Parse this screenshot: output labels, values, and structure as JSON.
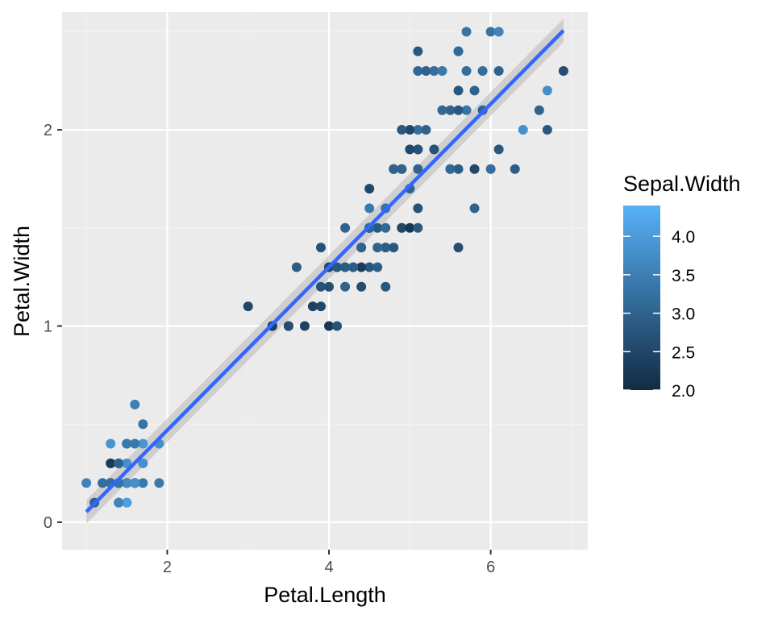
{
  "chart_data": {
    "type": "scatter",
    "xlabel": "Petal.Length",
    "ylabel": "Petal.Width",
    "xlim": [
      0.7,
      7.2
    ],
    "ylim": [
      -0.14,
      2.6
    ],
    "x_ticks": [
      2,
      4,
      6
    ],
    "x_tick_labels": [
      "2",
      "4",
      "6"
    ],
    "y_ticks": [
      0,
      1,
      2
    ],
    "y_tick_labels": [
      "0",
      "1",
      "2"
    ],
    "grid": true,
    "legend": {
      "title": "Sepal.Width",
      "placement": "right",
      "min": 2.0,
      "max": 4.4,
      "breaks": [
        2.0,
        2.5,
        3.0,
        3.5,
        4.0
      ],
      "break_labels": [
        "2.0",
        "2.5",
        "3.0",
        "3.5",
        "4.0"
      ]
    },
    "colors": {
      "panel_bg": "#ebebeb",
      "grid_major": "#ffffff",
      "grid_minor": "#f4f4f4",
      "low": "#132B43",
      "high": "#56B1F7",
      "fit_line": "#3366FF",
      "confidence_band": "#bdbdbd"
    },
    "fit": {
      "method": "lm",
      "intercept": -0.363,
      "slope": 0.4158,
      "x_range": [
        1.0,
        6.9
      ],
      "se_band": 0.06
    },
    "points": [
      {
        "x": 1.4,
        "y": 0.2,
        "c": 3.5
      },
      {
        "x": 1.4,
        "y": 0.2,
        "c": 3.0
      },
      {
        "x": 1.3,
        "y": 0.2,
        "c": 3.2
      },
      {
        "x": 1.5,
        "y": 0.2,
        "c": 3.1
      },
      {
        "x": 1.4,
        "y": 0.2,
        "c": 3.6
      },
      {
        "x": 1.7,
        "y": 0.4,
        "c": 3.9
      },
      {
        "x": 1.4,
        "y": 0.3,
        "c": 3.4
      },
      {
        "x": 1.5,
        "y": 0.2,
        "c": 3.4
      },
      {
        "x": 1.4,
        "y": 0.2,
        "c": 2.9
      },
      {
        "x": 1.5,
        "y": 0.1,
        "c": 3.1
      },
      {
        "x": 1.5,
        "y": 0.2,
        "c": 3.7
      },
      {
        "x": 1.6,
        "y": 0.2,
        "c": 3.4
      },
      {
        "x": 1.4,
        "y": 0.1,
        "c": 3.0
      },
      {
        "x": 1.1,
        "y": 0.1,
        "c": 3.0
      },
      {
        "x": 1.2,
        "y": 0.2,
        "c": 4.0
      },
      {
        "x": 1.5,
        "y": 0.4,
        "c": 4.4
      },
      {
        "x": 1.3,
        "y": 0.4,
        "c": 3.9
      },
      {
        "x": 1.4,
        "y": 0.3,
        "c": 3.5
      },
      {
        "x": 1.7,
        "y": 0.3,
        "c": 3.8
      },
      {
        "x": 1.5,
        "y": 0.3,
        "c": 3.8
      },
      {
        "x": 1.7,
        "y": 0.2,
        "c": 3.4
      },
      {
        "x": 1.5,
        "y": 0.4,
        "c": 3.7
      },
      {
        "x": 1.0,
        "y": 0.2,
        "c": 3.6
      },
      {
        "x": 1.7,
        "y": 0.5,
        "c": 3.3
      },
      {
        "x": 1.9,
        "y": 0.2,
        "c": 3.4
      },
      {
        "x": 1.6,
        "y": 0.2,
        "c": 3.0
      },
      {
        "x": 1.6,
        "y": 0.4,
        "c": 3.4
      },
      {
        "x": 1.5,
        "y": 0.2,
        "c": 3.5
      },
      {
        "x": 1.4,
        "y": 0.2,
        "c": 3.4
      },
      {
        "x": 1.6,
        "y": 0.2,
        "c": 3.2
      },
      {
        "x": 1.6,
        "y": 0.2,
        "c": 3.1
      },
      {
        "x": 1.5,
        "y": 0.4,
        "c": 3.4
      },
      {
        "x": 1.5,
        "y": 0.1,
        "c": 4.1
      },
      {
        "x": 1.4,
        "y": 0.2,
        "c": 4.2
      },
      {
        "x": 1.5,
        "y": 0.2,
        "c": 3.1
      },
      {
        "x": 1.2,
        "y": 0.2,
        "c": 3.2
      },
      {
        "x": 1.3,
        "y": 0.2,
        "c": 3.5
      },
      {
        "x": 1.4,
        "y": 0.1,
        "c": 3.6
      },
      {
        "x": 1.3,
        "y": 0.2,
        "c": 3.0
      },
      {
        "x": 1.5,
        "y": 0.2,
        "c": 3.4
      },
      {
        "x": 1.3,
        "y": 0.3,
        "c": 3.5
      },
      {
        "x": 1.3,
        "y": 0.3,
        "c": 2.3
      },
      {
        "x": 1.3,
        "y": 0.2,
        "c": 3.2
      },
      {
        "x": 1.6,
        "y": 0.6,
        "c": 3.5
      },
      {
        "x": 1.9,
        "y": 0.4,
        "c": 3.8
      },
      {
        "x": 1.4,
        "y": 0.3,
        "c": 3.0
      },
      {
        "x": 1.6,
        "y": 0.2,
        "c": 3.8
      },
      {
        "x": 1.4,
        "y": 0.2,
        "c": 3.2
      },
      {
        "x": 1.5,
        "y": 0.2,
        "c": 3.7
      },
      {
        "x": 1.4,
        "y": 0.2,
        "c": 3.3
      },
      {
        "x": 4.7,
        "y": 1.4,
        "c": 3.2
      },
      {
        "x": 4.5,
        "y": 1.5,
        "c": 3.2
      },
      {
        "x": 4.9,
        "y": 1.5,
        "c": 3.1
      },
      {
        "x": 4.0,
        "y": 1.3,
        "c": 2.3
      },
      {
        "x": 4.6,
        "y": 1.5,
        "c": 2.8
      },
      {
        "x": 4.5,
        "y": 1.3,
        "c": 2.8
      },
      {
        "x": 4.7,
        "y": 1.6,
        "c": 3.3
      },
      {
        "x": 3.3,
        "y": 1.0,
        "c": 2.4
      },
      {
        "x": 4.6,
        "y": 1.3,
        "c": 2.9
      },
      {
        "x": 3.9,
        "y": 1.4,
        "c": 2.7
      },
      {
        "x": 3.5,
        "y": 1.0,
        "c": 2.0
      },
      {
        "x": 4.2,
        "y": 1.5,
        "c": 3.0
      },
      {
        "x": 4.0,
        "y": 1.0,
        "c": 2.2
      },
      {
        "x": 4.7,
        "y": 1.4,
        "c": 2.9
      },
      {
        "x": 3.6,
        "y": 1.3,
        "c": 2.9
      },
      {
        "x": 4.4,
        "y": 1.4,
        "c": 3.1
      },
      {
        "x": 4.5,
        "y": 1.5,
        "c": 3.0
      },
      {
        "x": 4.1,
        "y": 1.0,
        "c": 2.7
      },
      {
        "x": 4.5,
        "y": 1.5,
        "c": 2.2
      },
      {
        "x": 3.9,
        "y": 1.1,
        "c": 2.5
      },
      {
        "x": 4.8,
        "y": 1.8,
        "c": 3.2
      },
      {
        "x": 4.0,
        "y": 1.3,
        "c": 2.8
      },
      {
        "x": 4.9,
        "y": 1.5,
        "c": 2.5
      },
      {
        "x": 4.7,
        "y": 1.2,
        "c": 2.8
      },
      {
        "x": 4.3,
        "y": 1.3,
        "c": 2.9
      },
      {
        "x": 4.4,
        "y": 1.4,
        "c": 3.0
      },
      {
        "x": 4.8,
        "y": 1.4,
        "c": 2.8
      },
      {
        "x": 5.0,
        "y": 1.7,
        "c": 3.0
      },
      {
        "x": 4.5,
        "y": 1.5,
        "c": 2.9
      },
      {
        "x": 3.5,
        "y": 1.0,
        "c": 2.6
      },
      {
        "x": 3.8,
        "y": 1.1,
        "c": 2.4
      },
      {
        "x": 3.7,
        "y": 1.0,
        "c": 2.4
      },
      {
        "x": 3.9,
        "y": 1.2,
        "c": 2.7
      },
      {
        "x": 5.1,
        "y": 1.6,
        "c": 2.7
      },
      {
        "x": 4.5,
        "y": 1.5,
        "c": 3.0
      },
      {
        "x": 4.5,
        "y": 1.6,
        "c": 3.4
      },
      {
        "x": 4.7,
        "y": 1.5,
        "c": 3.1
      },
      {
        "x": 4.4,
        "y": 1.3,
        "c": 2.3
      },
      {
        "x": 4.1,
        "y": 1.3,
        "c": 3.0
      },
      {
        "x": 4.0,
        "y": 1.3,
        "c": 2.5
      },
      {
        "x": 4.4,
        "y": 1.2,
        "c": 2.6
      },
      {
        "x": 4.6,
        "y": 1.4,
        "c": 3.0
      },
      {
        "x": 4.0,
        "y": 1.2,
        "c": 2.6
      },
      {
        "x": 3.3,
        "y": 1.0,
        "c": 2.3
      },
      {
        "x": 4.2,
        "y": 1.3,
        "c": 2.7
      },
      {
        "x": 4.2,
        "y": 1.2,
        "c": 3.0
      },
      {
        "x": 4.2,
        "y": 1.3,
        "c": 2.9
      },
      {
        "x": 4.3,
        "y": 1.3,
        "c": 2.9
      },
      {
        "x": 3.0,
        "y": 1.1,
        "c": 2.5
      },
      {
        "x": 4.1,
        "y": 1.3,
        "c": 2.8
      },
      {
        "x": 6.0,
        "y": 2.5,
        "c": 3.3
      },
      {
        "x": 5.1,
        "y": 1.9,
        "c": 2.7
      },
      {
        "x": 5.9,
        "y": 2.1,
        "c": 3.0
      },
      {
        "x": 5.6,
        "y": 1.8,
        "c": 2.9
      },
      {
        "x": 5.8,
        "y": 2.2,
        "c": 3.0
      },
      {
        "x": 6.6,
        "y": 2.1,
        "c": 3.0
      },
      {
        "x": 4.5,
        "y": 1.7,
        "c": 2.5
      },
      {
        "x": 6.3,
        "y": 1.8,
        "c": 2.9
      },
      {
        "x": 5.8,
        "y": 1.8,
        "c": 2.5
      },
      {
        "x": 6.1,
        "y": 2.5,
        "c": 3.6
      },
      {
        "x": 5.1,
        "y": 2.0,
        "c": 3.2
      },
      {
        "x": 5.3,
        "y": 1.9,
        "c": 2.7
      },
      {
        "x": 5.5,
        "y": 2.1,
        "c": 3.0
      },
      {
        "x": 5.0,
        "y": 2.0,
        "c": 2.5
      },
      {
        "x": 5.1,
        "y": 2.4,
        "c": 2.8
      },
      {
        "x": 5.3,
        "y": 2.3,
        "c": 3.2
      },
      {
        "x": 5.5,
        "y": 1.8,
        "c": 3.0
      },
      {
        "x": 6.7,
        "y": 2.2,
        "c": 3.8
      },
      {
        "x": 6.9,
        "y": 2.3,
        "c": 2.6
      },
      {
        "x": 5.0,
        "y": 1.5,
        "c": 2.2
      },
      {
        "x": 5.7,
        "y": 2.3,
        "c": 3.2
      },
      {
        "x": 4.9,
        "y": 2.0,
        "c": 2.8
      },
      {
        "x": 6.7,
        "y": 2.0,
        "c": 2.8
      },
      {
        "x": 4.9,
        "y": 1.8,
        "c": 2.7
      },
      {
        "x": 5.7,
        "y": 2.1,
        "c": 3.3
      },
      {
        "x": 6.0,
        "y": 1.8,
        "c": 3.2
      },
      {
        "x": 4.8,
        "y": 1.8,
        "c": 2.8
      },
      {
        "x": 4.9,
        "y": 1.8,
        "c": 3.0
      },
      {
        "x": 5.6,
        "y": 2.1,
        "c": 2.8
      },
      {
        "x": 5.8,
        "y": 1.6,
        "c": 3.0
      },
      {
        "x": 6.1,
        "y": 1.9,
        "c": 2.8
      },
      {
        "x": 6.4,
        "y": 2.0,
        "c": 3.8
      },
      {
        "x": 5.6,
        "y": 2.2,
        "c": 2.8
      },
      {
        "x": 5.1,
        "y": 1.5,
        "c": 2.8
      },
      {
        "x": 5.6,
        "y": 1.4,
        "c": 2.6
      },
      {
        "x": 6.1,
        "y": 2.3,
        "c": 3.0
      },
      {
        "x": 5.6,
        "y": 2.4,
        "c": 3.4
      },
      {
        "x": 5.5,
        "y": 1.8,
        "c": 3.1
      },
      {
        "x": 4.8,
        "y": 1.8,
        "c": 3.0
      },
      {
        "x": 5.4,
        "y": 2.1,
        "c": 3.1
      },
      {
        "x": 5.6,
        "y": 2.4,
        "c": 3.1
      },
      {
        "x": 5.1,
        "y": 2.3,
        "c": 3.1
      },
      {
        "x": 5.1,
        "y": 1.9,
        "c": 2.7
      },
      {
        "x": 5.9,
        "y": 2.3,
        "c": 3.2
      },
      {
        "x": 5.7,
        "y": 2.5,
        "c": 3.3
      },
      {
        "x": 5.2,
        "y": 2.3,
        "c": 3.0
      },
      {
        "x": 5.0,
        "y": 1.9,
        "c": 2.5
      },
      {
        "x": 5.2,
        "y": 2.0,
        "c": 3.0
      },
      {
        "x": 5.4,
        "y": 2.3,
        "c": 3.4
      },
      {
        "x": 5.1,
        "y": 1.8,
        "c": 3.0
      }
    ]
  }
}
